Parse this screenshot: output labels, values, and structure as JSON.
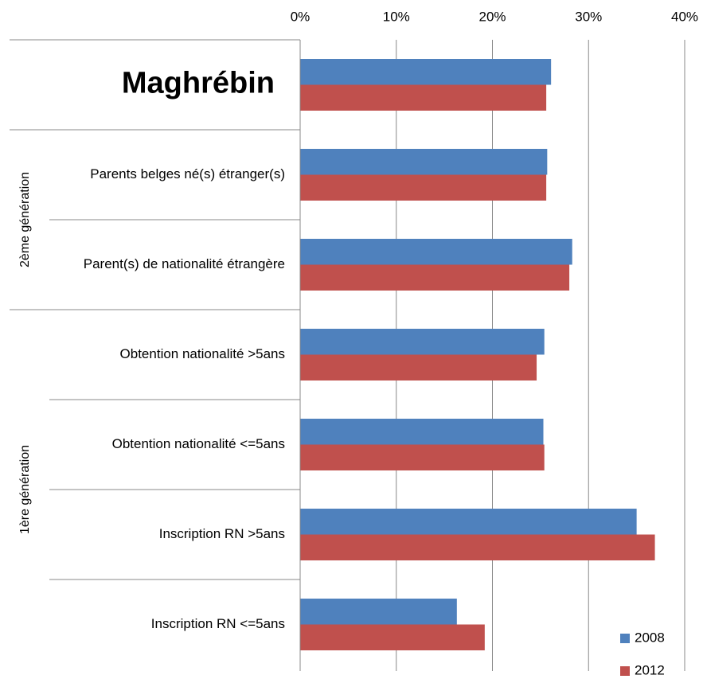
{
  "chart_data": {
    "type": "bar",
    "orientation": "horizontal",
    "categories": [
      "Maghrébin",
      "Parents belges né(s) étranger(s)",
      "Parent(s) de nationalité étrangère",
      "Obtention nationalité >5ans",
      "Obtention nationalité <=5ans",
      "Inscription RN >5ans",
      "Inscription RN <=5ans"
    ],
    "groups": [
      "2ème génération",
      "1ère génération"
    ],
    "series": [
      {
        "name": "2008",
        "color": "#4f81bd",
        "values": [
          26.1,
          25.7,
          28.3,
          25.4,
          25.3,
          35.0,
          16.3
        ]
      },
      {
        "name": "2012",
        "color": "#c0504d",
        "values": [
          25.6,
          25.6,
          28.0,
          24.6,
          25.4,
          36.9,
          19.2
        ]
      }
    ],
    "xlim": [
      0,
      40
    ],
    "xticks": [
      {
        "value": 0,
        "label": "0%"
      },
      {
        "value": 10,
        "label": "10%"
      },
      {
        "value": 20,
        "label": "20%"
      },
      {
        "value": 30,
        "label": "30%"
      },
      {
        "value": 40,
        "label": "40%"
      }
    ],
    "grid": true,
    "legend": "lower right"
  }
}
